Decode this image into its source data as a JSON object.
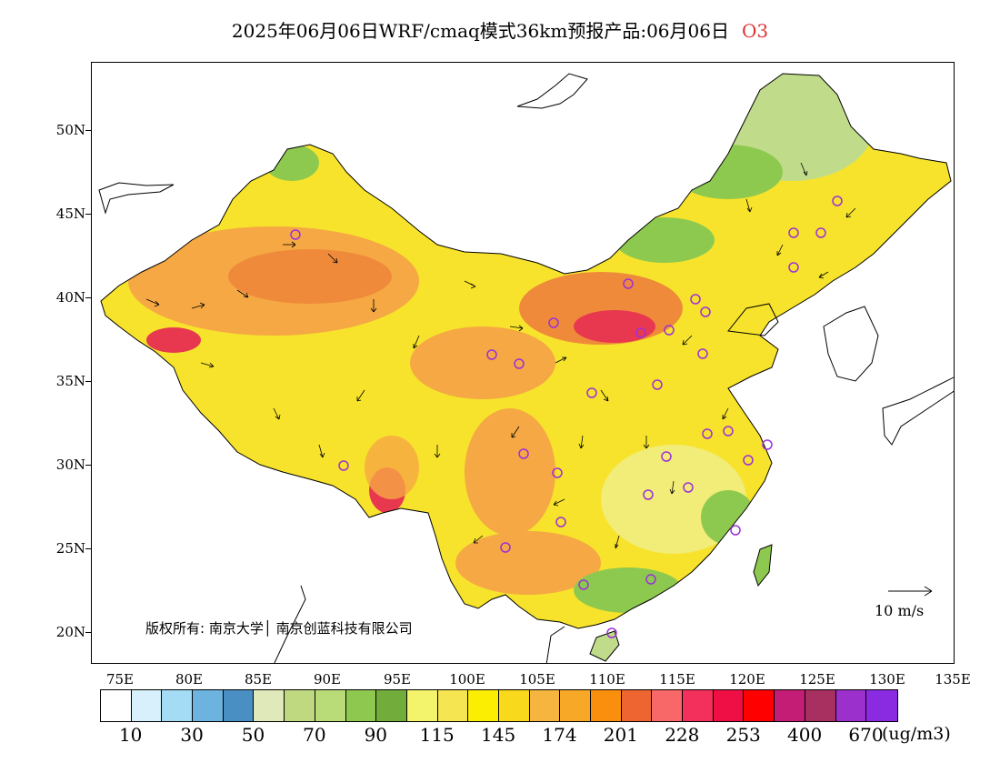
{
  "title": {
    "text": "2025年06月06日WRF/cmaq模式36km预报产品:06月06日",
    "species": "O3"
  },
  "map": {
    "lat_labels": [
      "50N",
      "45N",
      "40N",
      "35N",
      "30N",
      "25N",
      "20N"
    ],
    "lon_labels": [
      "75E",
      "80E",
      "85E",
      "90E",
      "95E",
      "100E",
      "105E",
      "110E",
      "115E",
      "120E",
      "125E",
      "130E",
      "135E"
    ],
    "copyright": "版权所有: 南京大学│ 南京创蓝科技有限公司",
    "wind_reference": "10  m/s",
    "colors": {
      "yellow": "#f7e32c",
      "orange": "#f5a843",
      "dark_orange": "#ef8a3a",
      "red": "#e8384f",
      "green": "#8ec94f",
      "light_green": "#c0dc8a",
      "pale_yellow": "#f2ec78",
      "marker": "#9b30d8"
    }
  },
  "legend": {
    "colors": [
      "#ffffff",
      "#d7f0fb",
      "#a4dcf5",
      "#6db3df",
      "#4a8fc4",
      "#dfe9b9",
      "#bfd981",
      "#b9dc78",
      "#8fc84f",
      "#72ac3a",
      "#f3f46c",
      "#f5e550",
      "#fcee02",
      "#f9d91b",
      "#f6b53e",
      "#f7a827",
      "#f98f0c",
      "#ef6531",
      "#f96868",
      "#f3305b",
      "#f00f45",
      "#ff0000",
      "#c41d75",
      "#a83060",
      "#9b30cc",
      "#8a2be2"
    ],
    "labels": [
      "10",
      "30",
      "50",
      "70",
      "90",
      "115",
      "145",
      "174",
      "201",
      "228",
      "253",
      "400",
      "670"
    ],
    "unit": "(ug/m3)"
  }
}
